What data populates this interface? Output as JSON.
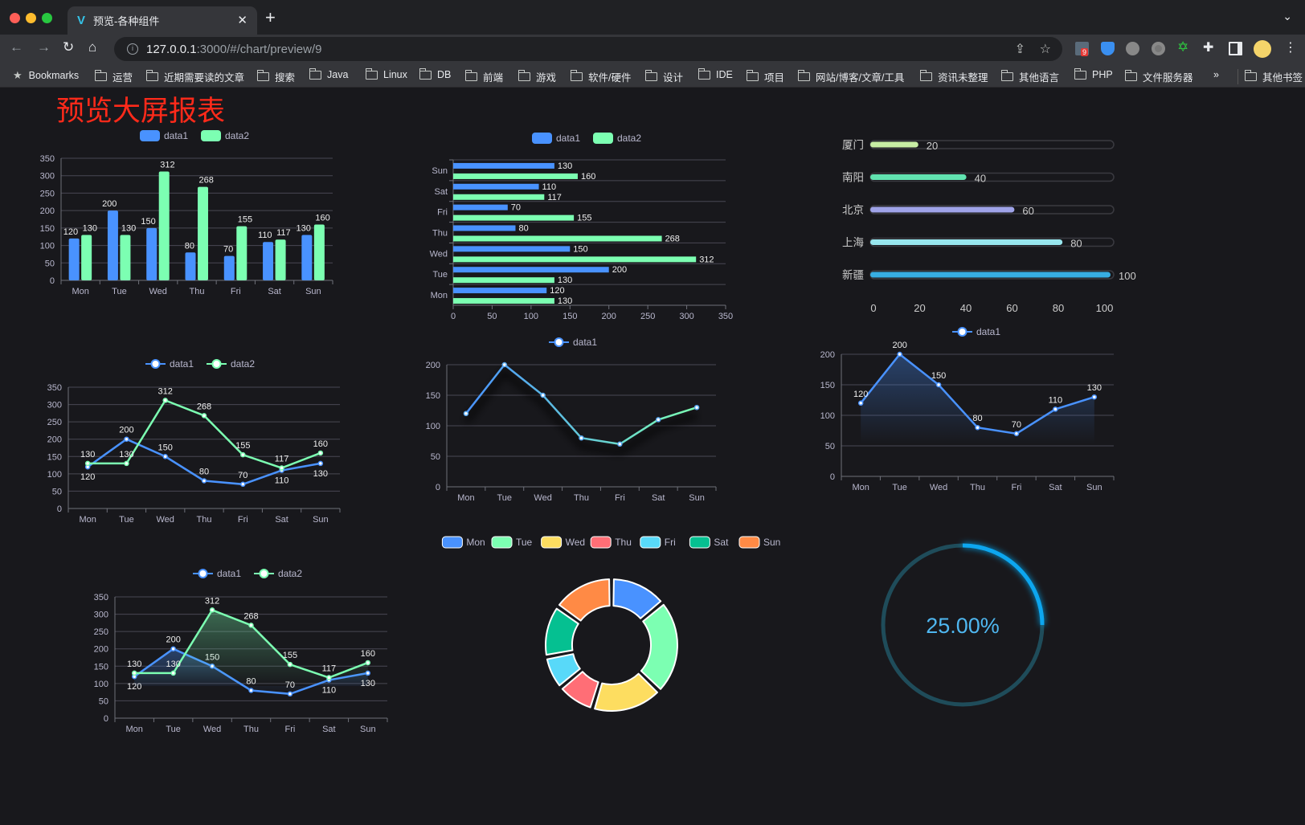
{
  "browser": {
    "tab_title": "预览-各种组件",
    "url_host": "127.0.0.1",
    "url_rest": ":3000/#/chart/preview/9",
    "extension_badge": "9",
    "bookmarks": [
      "Bookmarks",
      "运营",
      "近期需要读的文章",
      "搜索",
      "Java",
      "Linux",
      "DB",
      "前端",
      "游戏",
      "软件/硬件",
      "设计",
      "IDE",
      "项目",
      "网站/博客/文章/工具",
      "资讯未整理",
      "其他语言",
      "PHP",
      "文件服务器"
    ],
    "more": "»",
    "other_bookmarks": "其他书签"
  },
  "page": {
    "title": "预览大屏报表",
    "title_color": "#ff2a1a"
  },
  "colors": {
    "blue": "#4992ff",
    "green": "#7cffb2",
    "yellow": "#fddd60",
    "red": "#ff6e76",
    "cyan": "#58d9f9",
    "teal": "#05c091",
    "orange": "#ff8a45"
  },
  "chart_data": [
    {
      "type": "bar",
      "categories": [
        "Mon",
        "Tue",
        "Wed",
        "Thu",
        "Fri",
        "Sat",
        "Sun"
      ],
      "series": [
        {
          "name": "data1",
          "values": [
            120,
            200,
            150,
            80,
            70,
            110,
            130
          ]
        },
        {
          "name": "data2",
          "values": [
            130,
            130,
            312,
            268,
            155,
            117,
            160
          ]
        }
      ],
      "ylim": [
        0,
        350
      ],
      "yticks": [
        "0",
        "50",
        "100",
        "150",
        "200",
        "250",
        "300",
        "350"
      ],
      "legend": "top",
      "grid": true,
      "data_labels": true
    },
    {
      "type": "bar",
      "orientation": "horizontal",
      "categories": [
        "Mon",
        "Tue",
        "Wed",
        "Thu",
        "Fri",
        "Sat",
        "Sun"
      ],
      "series": [
        {
          "name": "data1",
          "values": [
            120,
            200,
            150,
            80,
            70,
            110,
            130
          ]
        },
        {
          "name": "data2",
          "values": [
            130,
            130,
            312,
            268,
            155,
            117,
            160
          ]
        }
      ],
      "xlim": [
        0,
        350
      ],
      "xticks": [
        "0",
        "50",
        "100",
        "150",
        "200",
        "250",
        "300",
        "350"
      ],
      "legend": "top",
      "grid": true,
      "data_labels": true
    },
    {
      "type": "bar",
      "orientation": "horizontal",
      "style": "progress",
      "categories": [
        "厦门",
        "南阳",
        "北京",
        "上海",
        "新疆"
      ],
      "values": [
        20,
        40,
        60,
        80,
        100
      ],
      "xlim": [
        0,
        100
      ],
      "xticks": [
        "0",
        "20",
        "40",
        "60",
        "80",
        "100"
      ],
      "bar_colors": [
        "#c8eea4",
        "#61e3b0",
        "#9fa3e8",
        "#98e6ee",
        "#37ade2"
      ]
    },
    {
      "type": "line",
      "categories": [
        "Mon",
        "Tue",
        "Wed",
        "Thu",
        "Fri",
        "Sat",
        "Sun"
      ],
      "series": [
        {
          "name": "data1",
          "values": [
            120,
            200,
            150,
            80,
            70,
            110,
            130
          ]
        },
        {
          "name": "data2",
          "values": [
            130,
            130,
            312,
            268,
            155,
            117,
            160
          ]
        }
      ],
      "ylim": [
        0,
        350
      ],
      "yticks": [
        "0",
        "50",
        "100",
        "150",
        "200",
        "250",
        "300",
        "350"
      ],
      "legend": "top",
      "grid": true,
      "data_labels": true
    },
    {
      "type": "line",
      "categories": [
        "Mon",
        "Tue",
        "Wed",
        "Thu",
        "Fri",
        "Sat",
        "Sun"
      ],
      "series": [
        {
          "name": "data1",
          "values": [
            120,
            200,
            150,
            80,
            70,
            110,
            130
          ]
        }
      ],
      "ylim": [
        0,
        200
      ],
      "yticks": [
        "0",
        "50",
        "100",
        "150",
        "200"
      ],
      "legend": "top",
      "grid": true,
      "data_labels": false,
      "line_gradient": [
        "#4992ff",
        "#7cffb2"
      ]
    },
    {
      "type": "area",
      "categories": [
        "Mon",
        "Tue",
        "Wed",
        "Thu",
        "Fri",
        "Sat",
        "Sun"
      ],
      "series": [
        {
          "name": "data1",
          "values": [
            120,
            200,
            150,
            80,
            70,
            110,
            130
          ]
        }
      ],
      "ylim": [
        0,
        200
      ],
      "yticks": [
        "0",
        "50",
        "100",
        "150",
        "200"
      ],
      "legend": "top",
      "grid": true,
      "data_labels": true
    },
    {
      "type": "area",
      "categories": [
        "Mon",
        "Tue",
        "Wed",
        "Thu",
        "Fri",
        "Sat",
        "Sun"
      ],
      "series": [
        {
          "name": "data1",
          "values": [
            120,
            200,
            150,
            80,
            70,
            110,
            130
          ]
        },
        {
          "name": "data2",
          "values": [
            130,
            130,
            312,
            268,
            155,
            117,
            160
          ]
        }
      ],
      "ylim": [
        0,
        350
      ],
      "yticks": [
        "0",
        "50",
        "100",
        "150",
        "200",
        "250",
        "300",
        "350"
      ],
      "legend": "top",
      "grid": true,
      "data_labels": true
    },
    {
      "type": "pie",
      "style": "donut",
      "categories": [
        "Mon",
        "Tue",
        "Wed",
        "Thu",
        "Fri",
        "Sat",
        "Sun"
      ],
      "values": [
        120,
        200,
        150,
        80,
        70,
        110,
        130
      ],
      "legend": "top"
    },
    {
      "type": "gauge",
      "value": 0.25,
      "label": "25.00%",
      "color": "#0aa6ef",
      "track_color": "#1f4c5a"
    }
  ]
}
